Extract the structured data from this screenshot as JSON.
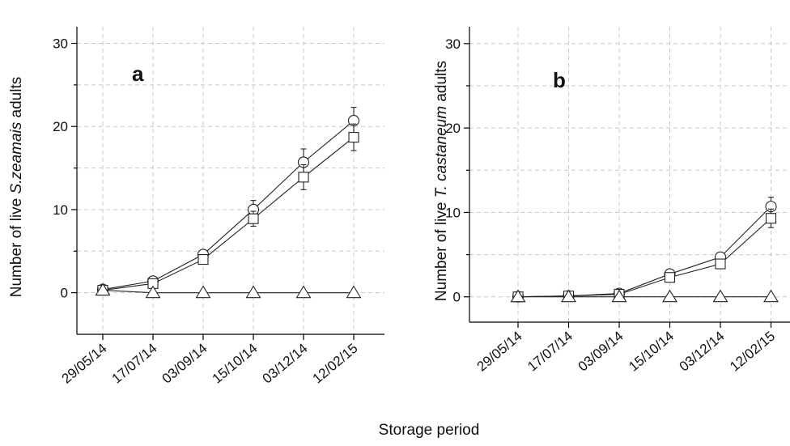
{
  "xlabel": "Storage period",
  "chart_data": [
    {
      "type": "line",
      "panel_label": "a",
      "ylabel_parts": [
        {
          "text": "Number of live ",
          "italic": false
        },
        {
          "text": "S.zeamais",
          "italic": true
        },
        {
          "text": " adults",
          "italic": false
        }
      ],
      "categories": [
        "29/05/14",
        "17/07/14",
        "03/09/14",
        "15/10/14",
        "03/12/14",
        "12/02/15"
      ],
      "ylim": [
        -5,
        32
      ],
      "yticks": [
        0,
        10,
        20,
        30
      ],
      "grid": true,
      "series": [
        {
          "marker": "circle",
          "values": [
            0.4,
            1.4,
            4.6,
            10.0,
            15.7,
            20.7
          ],
          "errors": [
            0.2,
            0.3,
            0.4,
            1.1,
            1.6,
            1.6
          ]
        },
        {
          "marker": "square",
          "values": [
            0.3,
            1.1,
            4.0,
            8.9,
            13.9,
            18.7
          ],
          "errors": [
            0.2,
            0.3,
            0.3,
            0.9,
            1.5,
            1.6
          ]
        },
        {
          "marker": "triangle",
          "values": [
            0.3,
            0,
            0,
            0,
            0,
            0
          ],
          "errors": [
            0,
            0,
            0,
            0,
            0,
            0
          ]
        }
      ]
    },
    {
      "type": "line",
      "panel_label": "b",
      "ylabel_parts": [
        {
          "text": "Number of live ",
          "italic": false
        },
        {
          "text": "T. castaneum",
          "italic": true
        },
        {
          "text": " adults",
          "italic": false
        }
      ],
      "categories": [
        "29/05/14",
        "17/07/14",
        "03/09/14",
        "15/10/14",
        "03/12/14",
        "12/02/15"
      ],
      "ylim": [
        -3,
        32
      ],
      "yticks": [
        0,
        10,
        20,
        30
      ],
      "grid": true,
      "series": [
        {
          "marker": "circle",
          "values": [
            0.0,
            0.1,
            0.4,
            2.7,
            4.7,
            10.7
          ],
          "errors": [
            0.1,
            0.2,
            0.2,
            0.4,
            0.4,
            1.1
          ]
        },
        {
          "marker": "square",
          "values": [
            0.0,
            0.1,
            0.3,
            2.3,
            3.9,
            9.3
          ],
          "errors": [
            0.1,
            0.2,
            0.2,
            0.4,
            0.4,
            1.1
          ]
        },
        {
          "marker": "triangle",
          "values": [
            0.0,
            0.0,
            0.0,
            0.0,
            0.0,
            0.0
          ],
          "errors": [
            0,
            0,
            0,
            0,
            0,
            0
          ]
        }
      ]
    }
  ]
}
